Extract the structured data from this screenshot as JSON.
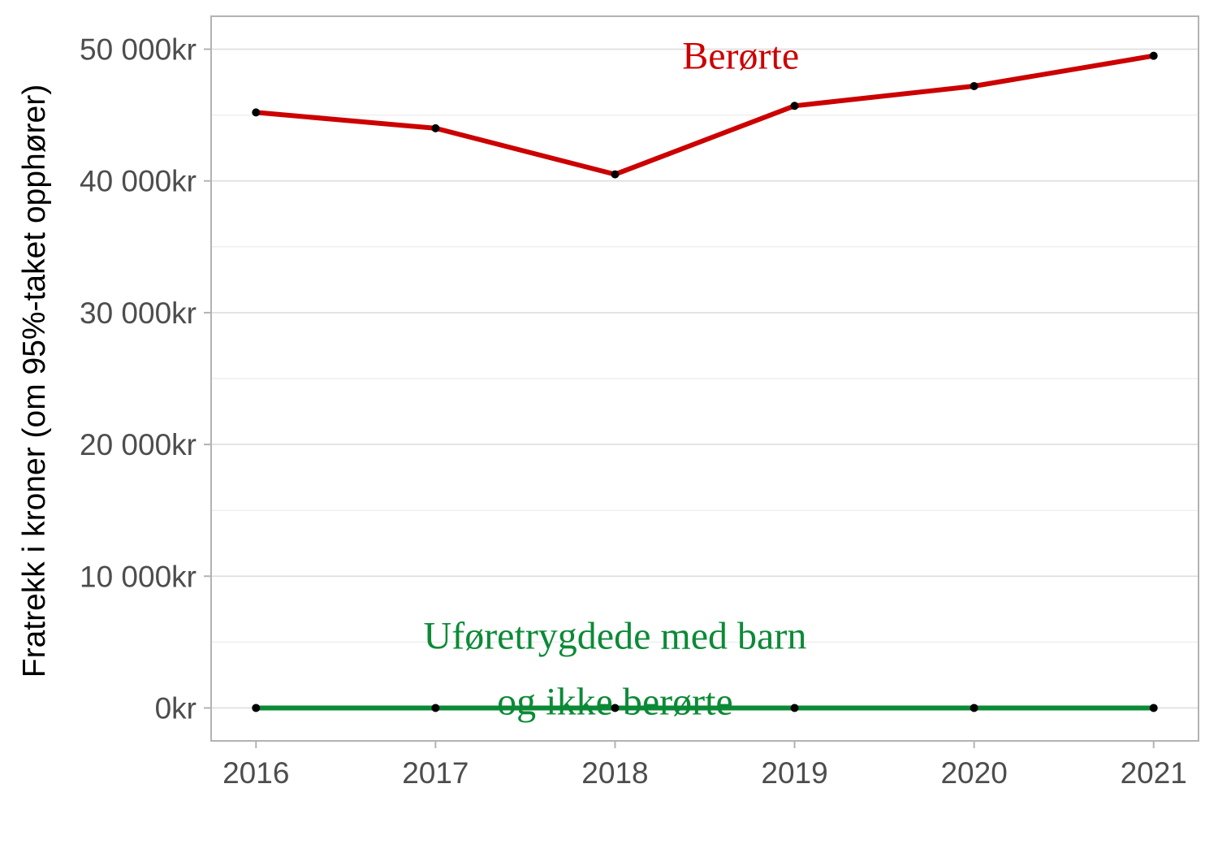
{
  "chart_data": {
    "type": "line",
    "title": "",
    "xlabel": "",
    "ylabel": "Fratrekk i kroner (om 95%-taket opphører)",
    "x": [
      2016,
      2017,
      2018,
      2019,
      2020,
      2021
    ],
    "x_tick_labels": [
      "2016",
      "2017",
      "2018",
      "2019",
      "2020",
      "2021"
    ],
    "y_ticks": [
      0,
      10000,
      20000,
      30000,
      40000,
      50000
    ],
    "y_tick_labels": [
      "0kr",
      "10 000kr",
      "20 000kr",
      "30 000kr",
      "40 000kr",
      "50 000kr"
    ],
    "ylim": [
      -2500,
      52500
    ],
    "xlim": [
      2015.75,
      2021.25
    ],
    "grid": true,
    "legend": "none",
    "series": [
      {
        "name": "Berørte",
        "color": "#cc0000",
        "values": [
          45200,
          44000,
          40500,
          45700,
          47200,
          49500
        ]
      },
      {
        "name": "Uføretrygdede med barn og ikke berørte",
        "color": "#0b8a36",
        "values": [
          0,
          0,
          0,
          0,
          0,
          0
        ]
      }
    ],
    "annotations": [
      {
        "text": "Berørte",
        "color": "#cc0000",
        "x": 2018.7,
        "y": 49500
      },
      {
        "text": "Uføretrygdede med barn",
        "color": "#0b8a36",
        "x": 2018.0,
        "y": 5500
      },
      {
        "text": "og ikke berørte",
        "color": "#0b8a36",
        "x": 2018.0,
        "y": 500
      }
    ]
  }
}
